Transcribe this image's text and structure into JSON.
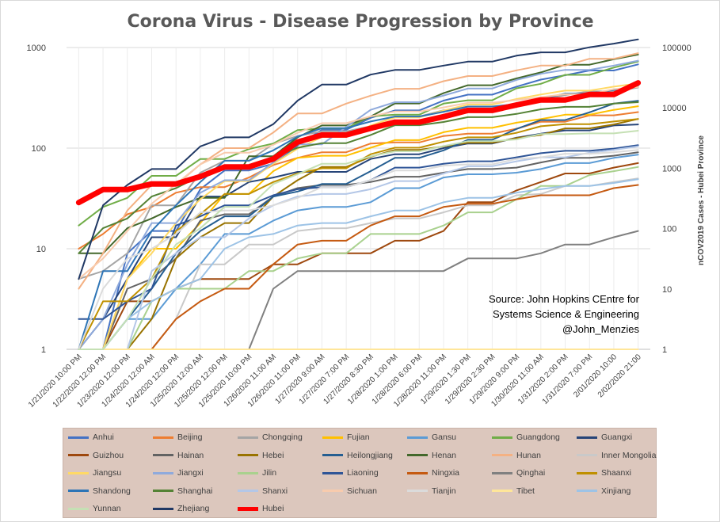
{
  "chart_data": {
    "type": "line",
    "title": "Corona Virus  - Disease Progression by Province",
    "y_scale": "log",
    "ylim": [
      1,
      1000
    ],
    "y_ticks": [
      "1",
      "10",
      "100",
      "1000"
    ],
    "y2_label": "nCOV2019 Cases - Hubei Province",
    "y2_scale": "log",
    "y2lim": [
      1,
      100000
    ],
    "y2_ticks": [
      "1",
      "10",
      "100",
      "1000",
      "10000",
      "100000"
    ],
    "x_ticks": [
      "1/21/2020 10:00 PM",
      "1/22/2020 12:00 PM",
      "1/23/2020 12:00 PM",
      "1/24/2020 12:00 AM",
      "1/24/2020 12:00 PM",
      "1/25/2020 12:00 AM",
      "1/25/2020 12:00 PM",
      "1/25/2020 10:00 PM",
      "1/26/2020 11:00 AM",
      "1/26/2020 11:00 PM",
      "1/27/2020 9:00 AM",
      "1/27/2020 7:00 PM",
      "1/27/2020 8:30 PM",
      "1/28/2020 1:00 PM",
      "1/28/2020 6:00 PM",
      "1/28/2020 11:00 PM",
      "1/29/2020 1:30 PM",
      "1/29/2020 2:30 PM",
      "1/29/2020 9:00 PM",
      "1/30/2020 11:00 AM",
      "1/31/2020 2:00 PM",
      "1/31/2020 7:00 PM",
      "2/01/2020 10:00",
      "2/02/2020 21:00"
    ],
    "series": [
      {
        "name": "Anhui",
        "color": "#4472c4",
        "values": [
          1,
          1,
          9,
          15,
          15,
          39,
          60,
          60,
          70,
          106,
          152,
          152,
          200,
          237,
          237,
          297,
          340,
          340,
          408,
          480,
          530,
          591,
          591,
          680
        ]
      },
      {
        "name": "Beijing",
        "color": "#ed7d31",
        "values": [
          10,
          14,
          22,
          26,
          36,
          41,
          41,
          51,
          68,
          80,
          91,
          91,
          111,
          114,
          114,
          132,
          139,
          139,
          156,
          183,
          183,
          212,
          212,
          228
        ]
      },
      {
        "name": "Chongqing",
        "color": "#a5a5a5",
        "values": [
          5,
          6,
          9,
          27,
          27,
          57,
          75,
          75,
          110,
          132,
          147,
          147,
          165,
          206,
          206,
          238,
          247,
          247,
          262,
          300,
          337,
          366,
          366,
          400
        ]
      },
      {
        "name": "Fujian",
        "color": "#ffc000",
        "values": [
          1,
          1,
          5,
          10,
          10,
          18,
          35,
          35,
          59,
          80,
          84,
          84,
          101,
          120,
          120,
          144,
          159,
          159,
          179,
          194,
          215,
          215,
          240,
          261
        ]
      },
      {
        "name": "Gansu",
        "color": "#5b9bd5",
        "values": [
          1,
          1,
          2,
          2,
          4,
          7,
          14,
          14,
          19,
          24,
          26,
          26,
          29,
          40,
          40,
          51,
          55,
          55,
          57,
          62,
          71,
          71,
          80,
          86
        ]
      },
      {
        "name": "Guangdong",
        "color": "#70ad47",
        "values": [
          17,
          26,
          32,
          53,
          53,
          78,
          78,
          98,
          111,
          151,
          157,
          157,
          207,
          215,
          215,
          277,
          299,
          299,
          393,
          436,
          535,
          535,
          632,
          725
        ]
      },
      {
        "name": "Guangxi",
        "color": "#264478",
        "values": [
          1,
          2,
          5,
          13,
          13,
          33,
          33,
          46,
          51,
          58,
          58,
          58,
          78,
          87,
          87,
          100,
          111,
          111,
          127,
          139,
          150,
          150,
          168,
          172
        ]
      },
      {
        "name": "Guizhou",
        "color": "#9e480e",
        "values": [
          1,
          1,
          3,
          3,
          4,
          5,
          5,
          5,
          7,
          7,
          9,
          9,
          9,
          12,
          12,
          15,
          29,
          29,
          38,
          46,
          56,
          56,
          64,
          71
        ]
      },
      {
        "name": "Hainan",
        "color": "#636363",
        "values": [
          1,
          1,
          4,
          5,
          8,
          19,
          22,
          22,
          33,
          40,
          43,
          43,
          46,
          52,
          52,
          57,
          62,
          62,
          64,
          72,
          80,
          80,
          84,
          91
        ]
      },
      {
        "name": "Hebei",
        "color": "#997300",
        "values": [
          1,
          1,
          1,
          2,
          8,
          13,
          18,
          18,
          33,
          48,
          65,
          65,
          82,
          96,
          96,
          104,
          113,
          113,
          126,
          135,
          157,
          157,
          172,
          195
        ]
      },
      {
        "name": "Heilongjiang",
        "color": "#255e91",
        "values": [
          1,
          1,
          2,
          4,
          9,
          15,
          21,
          21,
          33,
          37,
          44,
          44,
          59,
          80,
          80,
          95,
          121,
          121,
          155,
          190,
          190,
          227,
          277,
          295
        ]
      },
      {
        "name": "Henan",
        "color": "#43682b",
        "values": [
          9,
          9,
          16,
          20,
          26,
          32,
          32,
          83,
          83,
          128,
          168,
          168,
          206,
          278,
          278,
          352,
          422,
          422,
          493,
          566,
          675,
          675,
          764,
          851
        ]
      },
      {
        "name": "Hunan",
        "color": "#f4b183",
        "values": [
          4,
          9,
          24,
          43,
          43,
          69,
          100,
          100,
          143,
          221,
          221,
          277,
          332,
          389,
          389,
          463,
          521,
          521,
          593,
          661,
          661,
          773,
          773,
          879
        ]
      },
      {
        "name": "Inner Mongolia",
        "color": "#c9c9c9",
        "values": [
          1,
          1,
          1,
          1,
          2,
          7,
          7,
          11,
          11,
          15,
          16,
          16,
          18,
          20,
          20,
          23,
          27,
          27,
          34,
          35,
          42,
          42,
          46,
          50
        ]
      },
      {
        "name": "Jiangsu",
        "color": "#ffd966",
        "values": [
          1,
          1,
          5,
          9,
          18,
          31,
          47,
          47,
          70,
          99,
          129,
          129,
          168,
          202,
          202,
          236,
          271,
          271,
          308,
          341,
          373,
          373,
          408,
          439
        ]
      },
      {
        "name": "Jiangxi",
        "color": "#8faadc",
        "values": [
          1,
          2,
          7,
          18,
          18,
          36,
          48,
          48,
          72,
          109,
          109,
          162,
          240,
          286,
          286,
          333,
          391,
          391,
          476,
          548,
          600,
          600,
          661,
          740
        ]
      },
      {
        "name": "Jilin",
        "color": "#a9d18e",
        "values": [
          1,
          1,
          1,
          3,
          4,
          4,
          4,
          6,
          6,
          8,
          9,
          9,
          14,
          14,
          14,
          17,
          23,
          23,
          31,
          42,
          42,
          54,
          59,
          65
        ]
      },
      {
        "name": "Liaoning",
        "color": "#2f5597",
        "values": [
          2,
          2,
          3,
          4,
          17,
          21,
          27,
          27,
          34,
          39,
          41,
          41,
          48,
          64,
          64,
          70,
          74,
          74,
          81,
          89,
          94,
          94,
          99,
          107
        ]
      },
      {
        "name": "Ningxia",
        "color": "#c55a11",
        "values": [
          1,
          1,
          1,
          1,
          2,
          3,
          4,
          4,
          7,
          11,
          12,
          12,
          17,
          21,
          21,
          26,
          28,
          28,
          31,
          34,
          34,
          34,
          40,
          43
        ]
      },
      {
        "name": "Qinghai",
        "color": "#808080",
        "values": [
          1,
          1,
          1,
          1,
          1,
          1,
          1,
          1,
          4,
          6,
          6,
          6,
          6,
          6,
          6,
          6,
          8,
          8,
          8,
          9,
          11,
          11,
          13,
          15
        ]
      },
      {
        "name": "Shaanxi",
        "color": "#bf9000",
        "values": [
          1,
          3,
          3,
          5,
          15,
          22,
          35,
          35,
          46,
          56,
          63,
          63,
          87,
          101,
          101,
          116,
          128,
          128,
          142,
          165,
          173,
          173,
          184,
          195
        ]
      },
      {
        "name": "Shandong",
        "color": "#2e75b6",
        "values": [
          1,
          6,
          6,
          15,
          27,
          46,
          75,
          75,
          95,
          130,
          158,
          158,
          184,
          206,
          206,
          230,
          259,
          259,
          274,
          307,
          349,
          349,
          379,
          417
        ]
      },
      {
        "name": "Shanghai",
        "color": "#548235",
        "values": [
          9,
          16,
          20,
          33,
          40,
          53,
          66,
          66,
          80,
          101,
          112,
          112,
          135,
          169,
          169,
          182,
          203,
          203,
          219,
          243,
          257,
          257,
          277,
          286
        ]
      },
      {
        "name": "Shanxi",
        "color": "#b4c7e7",
        "values": [
          1,
          1,
          1,
          6,
          9,
          13,
          13,
          20,
          27,
          33,
          35,
          35,
          39,
          47,
          47,
          56,
          66,
          66,
          74,
          81,
          81,
          90,
          96,
          104
        ]
      },
      {
        "name": "Sichuan",
        "color": "#f8cbad",
        "values": [
          5,
          8,
          15,
          28,
          44,
          69,
          90,
          90,
          108,
          142,
          177,
          177,
          207,
          231,
          231,
          254,
          282,
          282,
          301,
          321,
          344,
          344,
          386,
          405
        ]
      },
      {
        "name": "Tianjin",
        "color": "#dbdbdb",
        "values": [
          1,
          4,
          8,
          10,
          14,
          23,
          24,
          24,
          27,
          32,
          41,
          41,
          48,
          60,
          60,
          67,
          69,
          69,
          78,
          81,
          88,
          88,
          91,
          96
        ]
      },
      {
        "name": "Tibet",
        "color": "#ffe699",
        "values": [
          1,
          1,
          1,
          1,
          1,
          1,
          1,
          1,
          1,
          1,
          1,
          1,
          1,
          1,
          1,
          1,
          1,
          1,
          1,
          1,
          1,
          1,
          1,
          1
        ]
      },
      {
        "name": "Xinjiang",
        "color": "#9dc3e6",
        "values": [
          1,
          1,
          2,
          3,
          4,
          5,
          10,
          13,
          14,
          17,
          18,
          18,
          21,
          24,
          24,
          29,
          32,
          32,
          36,
          39,
          42,
          42,
          45,
          49
        ]
      },
      {
        "name": "Yunnan",
        "color": "#c5e0b4",
        "values": [
          1,
          1,
          2,
          5,
          11,
          16,
          26,
          26,
          44,
          55,
          70,
          70,
          83,
          93,
          93,
          105,
          117,
          117,
          122,
          138,
          138,
          140,
          140,
          149
        ]
      },
      {
        "name": "Zhejiang",
        "color": "#203864",
        "values": [
          5,
          27,
          43,
          62,
          62,
          104,
          128,
          128,
          173,
          296,
          428,
          428,
          538,
          599,
          599,
          661,
          724,
          724,
          829,
          895,
          895,
          1006,
          1092,
          1205
        ]
      },
      {
        "name": "Hubei",
        "color": "#ff0000",
        "axis": "right",
        "values": [
          270,
          444,
          444,
          549,
          549,
          729,
          1052,
          1052,
          1423,
          2714,
          3554,
          3554,
          4586,
          5806,
          5806,
          7153,
          9074,
          9074,
          11177,
          13522,
          13522,
          16678,
          16678,
          26000
        ]
      }
    ],
    "annotation": [
      "Source:  John Hopkins CEntre for",
      "Systems Science & Engineering",
      "@John_Menzies"
    ]
  }
}
